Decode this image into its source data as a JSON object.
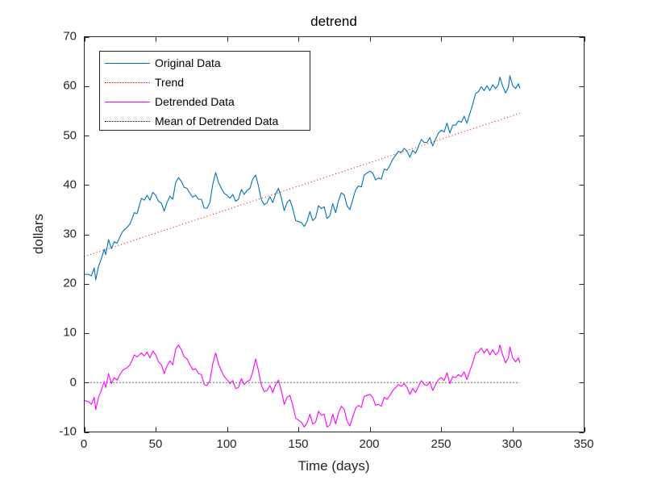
{
  "chart_data": {
    "type": "line",
    "title": "detrend",
    "xlabel": "Time (days)",
    "ylabel": "dollars",
    "xlim": [
      0,
      350
    ],
    "ylim": [
      -10,
      70
    ],
    "xticks": [
      0,
      50,
      100,
      150,
      200,
      250,
      300,
      350
    ],
    "yticks": [
      -10,
      0,
      10,
      20,
      30,
      40,
      50,
      60,
      70
    ],
    "grid": false,
    "legend_position": "upper-left",
    "legend": [
      "Original Data",
      "Trend",
      "Detrended Data",
      "Mean of Detrended Data"
    ],
    "trend": {
      "x": [
        0,
        305
      ],
      "y": [
        25.5,
        54.5
      ]
    },
    "mean_detrended": {
      "x": [
        0,
        305
      ],
      "y": [
        0,
        0
      ]
    },
    "x": [
      0,
      3,
      5,
      7,
      8,
      10,
      12,
      14,
      15,
      17,
      19,
      21,
      23,
      25,
      27,
      30,
      32,
      34,
      35,
      37,
      40,
      42,
      44,
      46,
      48,
      50,
      52,
      54,
      56,
      58,
      60,
      62,
      64,
      66,
      68,
      70,
      72,
      74,
      76,
      78,
      80,
      82,
      84,
      86,
      88,
      90,
      92,
      94,
      96,
      98,
      100,
      102,
      104,
      106,
      108,
      110,
      112,
      114,
      116,
      118,
      120,
      122,
      124,
      126,
      128,
      130,
      132,
      134,
      136,
      138,
      140,
      142,
      144,
      146,
      148,
      150,
      152,
      154,
      156,
      158,
      160,
      162,
      164,
      166,
      168,
      170,
      172,
      174,
      176,
      178,
      180,
      182,
      184,
      186,
      188,
      190,
      192,
      194,
      196,
      198,
      200,
      202,
      204,
      206,
      208,
      210,
      212,
      214,
      216,
      218,
      220,
      222,
      224,
      226,
      228,
      230,
      232,
      234,
      236,
      238,
      240,
      242,
      244,
      246,
      248,
      250,
      252,
      254,
      256,
      258,
      260,
      262,
      264,
      266,
      268,
      270,
      272,
      274,
      276,
      278,
      280,
      282,
      284,
      286,
      288,
      290,
      291,
      293,
      295,
      297,
      298,
      300,
      302,
      304,
      305
    ],
    "series": [
      {
        "name": "Detrended Data",
        "color": "#ff00ff",
        "style": "solid",
        "values": [
          -3.6,
          -3.9,
          -4.4,
          -3.0,
          -5.5,
          -3.0,
          -1.5,
          0.2,
          -1.0,
          1.8,
          -0.2,
          1.0,
          0.5,
          1.6,
          2.5,
          3.0,
          3.6,
          4.8,
          5.6,
          5.2,
          6.0,
          5.4,
          6.2,
          5.0,
          6.4,
          5.6,
          4.2,
          3.6,
          1.8,
          3.4,
          4.4,
          3.6,
          6.8,
          7.6,
          6.6,
          5.2,
          4.8,
          3.6,
          2.6,
          2.8,
          1.8,
          1.6,
          -0.4,
          -0.6,
          0.4,
          3.8,
          6.0,
          3.8,
          2.4,
          1.2,
          0.6,
          -0.2,
          0.4,
          -1.2,
          -1.0,
          0.8,
          -0.4,
          0.2,
          0.5,
          2.2,
          4.8,
          2.4,
          -0.6,
          -1.8,
          -1.6,
          -0.6,
          -2.0,
          -0.4,
          0.5,
          -1.6,
          -4.4,
          -3.0,
          -2.6,
          -4.6,
          -7.2,
          -7.6,
          -8.0,
          -9.0,
          -8.2,
          -6.4,
          -8.4,
          -8.0,
          -5.8,
          -6.6,
          -6.4,
          -9.0,
          -8.6,
          -6.4,
          -8.4,
          -6.2,
          -4.8,
          -5.4,
          -7.8,
          -8.8,
          -7.0,
          -5.2,
          -4.6,
          -5.0,
          -2.8,
          -2.6,
          -2.4,
          -3.0,
          -4.6,
          -4.4,
          -4.8,
          -3.0,
          -3.4,
          -2.6,
          -1.6,
          -1.0,
          -0.4,
          -0.8,
          -0.2,
          -1.0,
          -2.4,
          -1.2,
          -2.0,
          -0.8,
          0.4,
          -0.4,
          -0.6,
          0.2,
          -1.6,
          -0.4,
          0.6,
          1.0,
          0.4,
          2.0,
          -0.2,
          1.2,
          1.0,
          1.6,
          1.2,
          2.2,
          0.6,
          2.4,
          4.0,
          6.0,
          6.2,
          7.0,
          6.0,
          6.8,
          5.6,
          6.6,
          5.6,
          6.2,
          7.6,
          5.6,
          4.0,
          5.0,
          7.2,
          5.0,
          4.2,
          5.0,
          4.0
        ]
      },
      {
        "name": "Original Data",
        "color": "#0072bd",
        "style": "solid",
        "values": [
          21.9,
          21.9,
          21.6,
          23.2,
          20.8,
          23.5,
          25.1,
          27.0,
          25.9,
          28.9,
          27.1,
          28.5,
          28.2,
          29.5,
          30.6,
          31.4,
          32.1,
          33.5,
          34.4,
          34.2,
          37.3,
          36.9,
          37.9,
          36.9,
          38.5,
          37.9,
          36.7,
          36.3,
          34.7,
          36.5,
          37.7,
          37.1,
          40.5,
          41.5,
          40.7,
          39.5,
          39.3,
          38.3,
          37.5,
          37.9,
          37.1,
          37.1,
          35.3,
          35.3,
          36.5,
          40.1,
          42.5,
          40.5,
          39.3,
          38.3,
          37.9,
          37.3,
          38.1,
          36.7,
          37.1,
          39.1,
          38.1,
          38.9,
          39.3,
          41.2,
          42.0,
          39.8,
          37.0,
          36.0,
          36.4,
          37.6,
          36.4,
          38.2,
          39.3,
          37.4,
          34.8,
          36.4,
          37.0,
          35.2,
          32.8,
          32.6,
          32.4,
          31.6,
          32.6,
          34.6,
          32.8,
          33.4,
          35.8,
          35.2,
          35.6,
          33.2,
          33.8,
          36.2,
          34.4,
          36.8,
          38.4,
          38.0,
          35.8,
          35.0,
          37.0,
          39.0,
          39.8,
          39.6,
          42.0,
          42.4,
          42.8,
          42.4,
          41.0,
          41.4,
          41.2,
          43.2,
          43.0,
          44.0,
          45.2,
          46.0,
          46.8,
          46.6,
          47.4,
          46.8,
          45.6,
          47.0,
          46.4,
          47.8,
          49.2,
          48.6,
          48.6,
          49.6,
          47.9,
          49.3,
          50.5,
          51.1,
          50.7,
          52.5,
          50.5,
          52.1,
          52.1,
          52.9,
          52.7,
          53.9,
          52.5,
          54.5,
          56.3,
          58.5,
          58.9,
          59.9,
          59.1,
          60.1,
          59.1,
          60.3,
          59.5,
          60.3,
          61.8,
          60.0,
          58.6,
          59.8,
          62.1,
          60.1,
          59.5,
          60.5,
          59.5
        ]
      },
      {
        "name": "Trend",
        "color": "#ff0000",
        "style": "dotted"
      },
      {
        "name": "Mean of Detrended Data",
        "color": "#000000",
        "style": "dotted"
      }
    ]
  },
  "legend": {
    "items": [
      {
        "label": "Original Data",
        "color": "#0072bd",
        "style": "solid"
      },
      {
        "label": "Trend",
        "color": "#ff0000",
        "style": "dotted"
      },
      {
        "label": "Detrended Data",
        "color": "#ff00ff",
        "style": "solid"
      },
      {
        "label": "Mean of Detrended Data",
        "color": "#000000",
        "style": "dotted"
      }
    ]
  },
  "xtick_labels": [
    "0",
    "50",
    "100",
    "150",
    "200",
    "250",
    "300",
    "350"
  ],
  "ytick_labels": [
    "-10",
    "0",
    "10",
    "20",
    "30",
    "40",
    "50",
    "60",
    "70"
  ]
}
